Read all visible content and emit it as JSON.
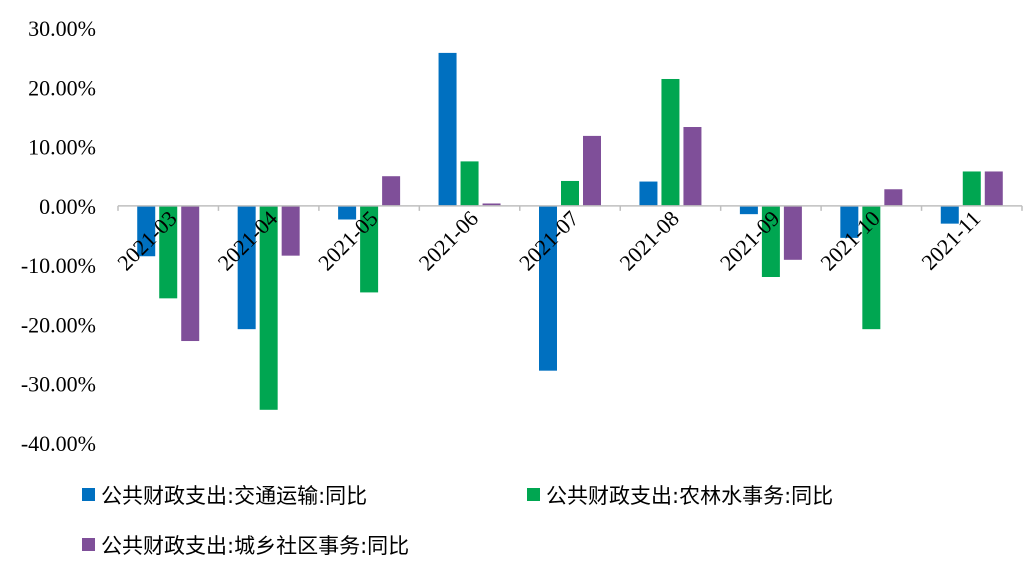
{
  "chart_data": {
    "type": "bar",
    "categories": [
      "2021-03",
      "2021-04",
      "2021-05",
      "2021-06",
      "2021-07",
      "2021-08",
      "2021-09",
      "2021-10",
      "2021-11"
    ],
    "series": [
      {
        "name": "公共财政支出:交通运输:同比",
        "color": "#0070C0",
        "values": [
          -8.5,
          -20.8,
          -2.3,
          25.8,
          -27.8,
          4.1,
          -1.4,
          -5.4,
          -3.0
        ]
      },
      {
        "name": "公共财政支出:农林水事务:同比",
        "color": "#00A651",
        "values": [
          -15.6,
          -34.4,
          -14.6,
          7.5,
          4.2,
          21.4,
          -12.0,
          -20.8,
          5.8
        ]
      },
      {
        "name": "公共财政支出:城乡社区事务:同比",
        "color": "#7F4F99",
        "values": [
          -22.8,
          -8.4,
          5.0,
          0.4,
          11.8,
          13.3,
          -9.1,
          2.8,
          5.8
        ]
      }
    ],
    "ylim": [
      -40,
      30
    ],
    "yticks": [
      "30.00%",
      "20.00%",
      "10.00%",
      "0.00%",
      "-10.00%",
      "-20.00%",
      "-30.00%",
      "-40.00%"
    ],
    "ytick_values": [
      30,
      20,
      10,
      0,
      -10,
      -20,
      -30,
      -40
    ],
    "title": "",
    "xlabel": "",
    "ylabel": "",
    "grid": false,
    "legend_position": "bottom"
  }
}
